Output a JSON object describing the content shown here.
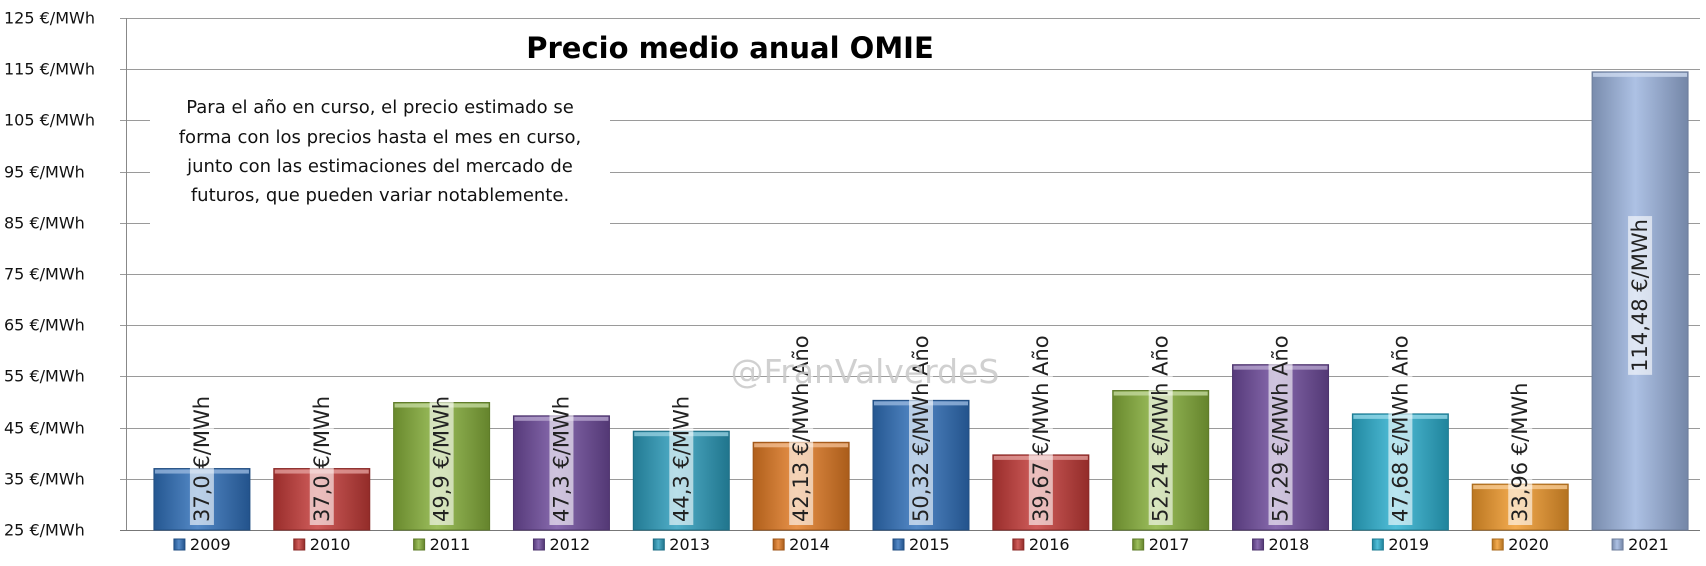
{
  "chart_data": {
    "type": "bar",
    "title": "Precio medio anual OMIE",
    "annotation": [
      "Para el año en curso, el precio  estimado se",
      "forma con los precios hasta el mes en curso,",
      "junto con las estimaciones del mercado de",
      "futuros, que pueden variar notablemente."
    ],
    "watermark": "@FranValverdeS",
    "ylim": [
      25,
      125
    ],
    "yticks": [
      {
        "value": 25,
        "label": "25 €/MWh"
      },
      {
        "value": 35,
        "label": "35 €/MWh"
      },
      {
        "value": 45,
        "label": "45 €/MWh"
      },
      {
        "value": 55,
        "label": "55 €/MWh"
      },
      {
        "value": 65,
        "label": "65 €/MWh"
      },
      {
        "value": 75,
        "label": "75 €/MWh"
      },
      {
        "value": 85,
        "label": "85 €/MWh"
      },
      {
        "value": 95,
        "label": "95 €/MWh"
      },
      {
        "value": 105,
        "label": "105 €/MWh"
      },
      {
        "value": 115,
        "label": "115 €/MWh"
      },
      {
        "value": 125,
        "label": "125 €/MWh"
      }
    ],
    "grid": true,
    "legend_position": "bottom",
    "series": [
      {
        "name": "2009",
        "value": 37.0,
        "label": "37,0 €/MWh",
        "color": "#2f6fba"
      },
      {
        "name": "2010",
        "value": 37.0,
        "label": "37,0 €/MWh",
        "color": "#c43a37"
      },
      {
        "name": "2011",
        "value": 49.9,
        "label": "49,9 €/MWh",
        "color": "#86b03a"
      },
      {
        "name": "2012",
        "value": 47.3,
        "label": "47,3 €/MWh",
        "color": "#6e4a9c"
      },
      {
        "name": "2013",
        "value": 44.3,
        "label": "44,3 €/MWh",
        "color": "#2b9cbc"
      },
      {
        "name": "2014",
        "value": 42.13,
        "label": "42,13 €/MWh Año",
        "color": "#e27a22"
      },
      {
        "name": "2015",
        "value": 50.32,
        "label": "50,32 €/MWh Año",
        "color": "#2f6fba"
      },
      {
        "name": "2016",
        "value": 39.67,
        "label": "39,67 €/MWh Año",
        "color": "#c43a37"
      },
      {
        "name": "2017",
        "value": 52.24,
        "label": "52,24 €/MWh Año",
        "color": "#86b03a"
      },
      {
        "name": "2018",
        "value": 57.29,
        "label": "57,29 €/MWh Año",
        "color": "#6e4a9c"
      },
      {
        "name": "2019",
        "value": 47.68,
        "label": "47,68 €/MWh Año",
        "color": "#2bb0d0"
      },
      {
        "name": "2020",
        "value": 33.96,
        "label": "33,96 €/MWh",
        "color": "#f0982a"
      },
      {
        "name": "2021",
        "value": 114.48,
        "label": "114,48 €/MWh",
        "color": "#9bb3de"
      }
    ]
  }
}
